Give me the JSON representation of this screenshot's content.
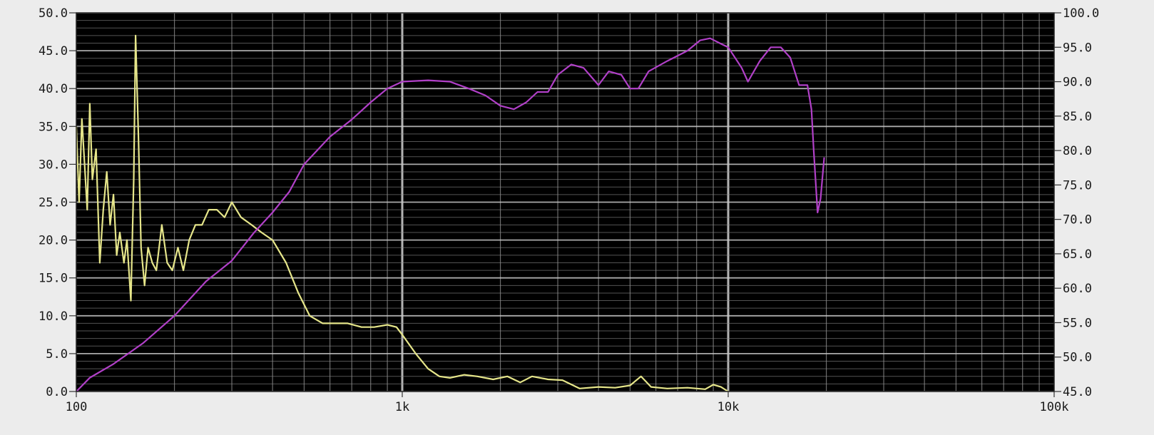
{
  "chart_data": {
    "type": "line",
    "x_scale": "log",
    "xlim": [
      100,
      100000
    ],
    "ylim_left": [
      0,
      50
    ],
    "ylim_right": [
      45,
      100
    ],
    "x_ticks": [
      {
        "value": 100,
        "label": "100"
      },
      {
        "value": 1000,
        "label": "1k"
      },
      {
        "value": 10000,
        "label": "10k"
      },
      {
        "value": 100000,
        "label": "100k"
      }
    ],
    "y_left_ticks": [
      {
        "value": 0,
        "label": "0.0"
      },
      {
        "value": 5,
        "label": "5.0"
      },
      {
        "value": 10,
        "label": "10.0"
      },
      {
        "value": 15,
        "label": "15.0"
      },
      {
        "value": 20,
        "label": "20.0"
      },
      {
        "value": 25,
        "label": "25.0"
      },
      {
        "value": 30,
        "label": "30.0"
      },
      {
        "value": 35,
        "label": "35.0"
      },
      {
        "value": 40,
        "label": "40.0"
      },
      {
        "value": 45,
        "label": "45.0"
      },
      {
        "value": 50,
        "label": "50.0"
      }
    ],
    "y_right_ticks": [
      {
        "value": 45,
        "label": "45.0"
      },
      {
        "value": 50,
        "label": "50.0"
      },
      {
        "value": 55,
        "label": "55.0"
      },
      {
        "value": 60,
        "label": "60.0"
      },
      {
        "value": 65,
        "label": "65.0"
      },
      {
        "value": 70,
        "label": "70.0"
      },
      {
        "value": 75,
        "label": "75.0"
      },
      {
        "value": 80,
        "label": "80.0"
      },
      {
        "value": 85,
        "label": "85.0"
      },
      {
        "value": 90,
        "label": "90.0"
      },
      {
        "value": 95,
        "label": "95.0"
      },
      {
        "value": 100,
        "label": "100.0"
      }
    ],
    "grid": true,
    "colors": {
      "plot_background": "#000000",
      "grid_line": "#8a8a8a",
      "major_grid_line": "#c8c8c8",
      "yellow_series": "#e6e68a",
      "magenta_series": "#b140c8"
    },
    "series": [
      {
        "axis": "left",
        "color": "#e6e68a",
        "points": [
          [
            100,
            35
          ],
          [
            102,
            25
          ],
          [
            104,
            36
          ],
          [
            106,
            30
          ],
          [
            108,
            24
          ],
          [
            110,
            38
          ],
          [
            112,
            28
          ],
          [
            115,
            32
          ],
          [
            118,
            17
          ],
          [
            121,
            24
          ],
          [
            124,
            29
          ],
          [
            127,
            22
          ],
          [
            130,
            26
          ],
          [
            133,
            18
          ],
          [
            136,
            21
          ],
          [
            140,
            17
          ],
          [
            143,
            20
          ],
          [
            147,
            12
          ],
          [
            150,
            28
          ],
          [
            152,
            47
          ],
          [
            155,
            34
          ],
          [
            158,
            19
          ],
          [
            162,
            14
          ],
          [
            166,
            19
          ],
          [
            171,
            17
          ],
          [
            176,
            16
          ],
          [
            183,
            22
          ],
          [
            190,
            17
          ],
          [
            197,
            16
          ],
          [
            205,
            19
          ],
          [
            213,
            16
          ],
          [
            222,
            20
          ],
          [
            232,
            22
          ],
          [
            243,
            22
          ],
          [
            255,
            24
          ],
          [
            270,
            24
          ],
          [
            285,
            23
          ],
          [
            300,
            25
          ],
          [
            320,
            23
          ],
          [
            345,
            22
          ],
          [
            370,
            21
          ],
          [
            400,
            20
          ],
          [
            440,
            17
          ],
          [
            480,
            13
          ],
          [
            520,
            10
          ],
          [
            570,
            9
          ],
          [
            620,
            9
          ],
          [
            680,
            9
          ],
          [
            750,
            8.5
          ],
          [
            820,
            8.5
          ],
          [
            900,
            8.8
          ],
          [
            960,
            8.5
          ],
          [
            1000,
            7.5
          ],
          [
            1100,
            5
          ],
          [
            1200,
            3
          ],
          [
            1300,
            2
          ],
          [
            1400,
            1.8
          ],
          [
            1550,
            2.2
          ],
          [
            1700,
            2
          ],
          [
            1900,
            1.6
          ],
          [
            2100,
            2
          ],
          [
            2300,
            1.2
          ],
          [
            2500,
            2
          ],
          [
            2800,
            1.6
          ],
          [
            3100,
            1.5
          ],
          [
            3500,
            0.4
          ],
          [
            4000,
            0.6
          ],
          [
            4500,
            0.5
          ],
          [
            5000,
            0.8
          ],
          [
            5400,
            2
          ],
          [
            5800,
            0.6
          ],
          [
            6500,
            0.4
          ],
          [
            7500,
            0.5
          ],
          [
            8500,
            0.3
          ],
          [
            9000,
            0.9
          ],
          [
            9500,
            0.6
          ],
          [
            10000,
            0
          ]
        ]
      },
      {
        "axis": "right",
        "color": "#b140c8",
        "points": [
          [
            100,
            45
          ],
          [
            110,
            47
          ],
          [
            130,
            49
          ],
          [
            160,
            52
          ],
          [
            200,
            56
          ],
          [
            250,
            61
          ],
          [
            300,
            64
          ],
          [
            350,
            68
          ],
          [
            400,
            71
          ],
          [
            450,
            74
          ],
          [
            500,
            78
          ],
          [
            600,
            82
          ],
          [
            700,
            84.5
          ],
          [
            800,
            87
          ],
          [
            900,
            89
          ],
          [
            1000,
            90
          ],
          [
            1200,
            90.2
          ],
          [
            1400,
            90
          ],
          [
            1600,
            89
          ],
          [
            1800,
            88
          ],
          [
            2000,
            86.5
          ],
          [
            2200,
            86
          ],
          [
            2400,
            87
          ],
          [
            2600,
            88.5
          ],
          [
            2800,
            88.5
          ],
          [
            3000,
            91
          ],
          [
            3300,
            92.5
          ],
          [
            3600,
            92
          ],
          [
            4000,
            89.5
          ],
          [
            4300,
            91.5
          ],
          [
            4700,
            91
          ],
          [
            5000,
            89
          ],
          [
            5300,
            89
          ],
          [
            5700,
            91.5
          ],
          [
            6500,
            93
          ],
          [
            7500,
            94.5
          ],
          [
            8200,
            96
          ],
          [
            8800,
            96.3
          ],
          [
            9500,
            95.5
          ],
          [
            10000,
            95
          ],
          [
            11000,
            92
          ],
          [
            11500,
            90
          ],
          [
            12500,
            93
          ],
          [
            13500,
            95
          ],
          [
            14500,
            95
          ],
          [
            15500,
            93.5
          ],
          [
            16500,
            89.5
          ],
          [
            17500,
            89.5
          ],
          [
            18000,
            86
          ],
          [
            18300,
            80
          ],
          [
            18800,
            71
          ],
          [
            19200,
            73
          ],
          [
            19700,
            79
          ]
        ]
      }
    ]
  }
}
